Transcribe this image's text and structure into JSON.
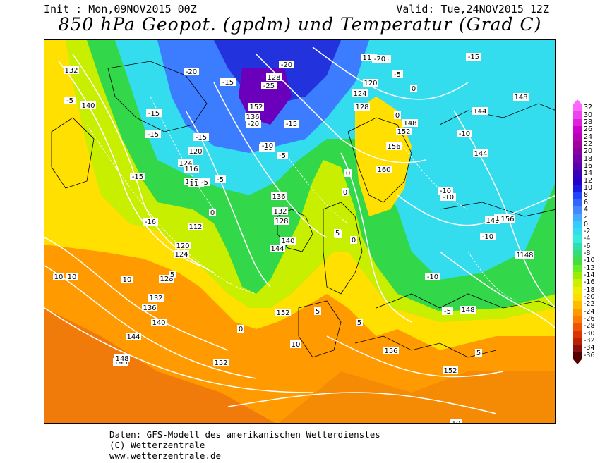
{
  "header": {
    "init": "Init : Mon,09NOV2015 00Z",
    "valid": "Valid: Tue,24NOV2015 12Z",
    "title": "850 hPa Geopot. (gpdm) und Temperatur (Grad C)"
  },
  "legend": {
    "ticks": [
      "32",
      "30",
      "28",
      "26",
      "24",
      "22",
      "20",
      "18",
      "16",
      "14",
      "12",
      "10",
      "8",
      "6",
      "4",
      "2",
      "0",
      "-2",
      "-4",
      "-6",
      "-8",
      "-10",
      "-12",
      "-14",
      "-16",
      "-18",
      "-20",
      "-22",
      "-24",
      "-26",
      "-28",
      "-30",
      "-32",
      "-34",
      "-36"
    ],
    "colors": [
      "#ff66ff",
      "#ee44ee",
      "#dd22dd",
      "#cc00cc",
      "#b800b8",
      "#a000a0",
      "#8800a0",
      "#7000aa",
      "#5a00aa",
      "#3c00b4",
      "#2800c8",
      "#1a1ae0",
      "#2244ff",
      "#3366ff",
      "#4488ff",
      "#44aaff",
      "#33ccff",
      "#33ddee",
      "#33eedd",
      "#33ddaa",
      "#33dd77",
      "#44dd44",
      "#66ee22",
      "#99ee00",
      "#ccee00",
      "#eeee00",
      "#ffdd00",
      "#ffbb00",
      "#ff9900",
      "#ff7a00",
      "#ee5500",
      "#dd3300",
      "#bb2200",
      "#881111",
      "#550000"
    ]
  },
  "map_labels": {
    "geopotential": [
      "132",
      "140",
      "148",
      "124",
      "120",
      "116",
      "112",
      "112",
      "120",
      "124",
      "128",
      "132",
      "136",
      "140",
      "144",
      "148",
      "152",
      "136",
      "132",
      "128",
      "140",
      "144",
      "152",
      "156",
      "156",
      "128",
      "136",
      "152",
      "112",
      "118",
      "120",
      "124",
      "128",
      "148",
      "152",
      "156",
      "160",
      "144",
      "148",
      "140",
      "144",
      "144",
      "148",
      "156",
      "148",
      "152",
      "156"
    ],
    "temperature": [
      "-5",
      "-15",
      "-20",
      "-15",
      "-15",
      "-15",
      "-16",
      "-10",
      "-15",
      "-10",
      "-5",
      "-5",
      "0",
      "5",
      "5",
      "0",
      "10",
      "10",
      "10",
      "-20",
      "-25",
      "-20",
      "-15",
      "-10",
      "-5",
      "-20",
      "-25",
      "-20",
      "-5",
      "0",
      "0",
      "0",
      "5",
      "0",
      "5",
      "5",
      "10",
      "-15",
      "-10",
      "-10",
      "-10",
      "-5",
      "-10",
      "0",
      "5",
      "10",
      "-10"
    ]
  },
  "footer": {
    "line1": "Daten: GFS-Modell des amerikanischen Wetterdienstes",
    "line2": "(C) Wetterzentrale",
    "line3": "www.wetterzentrale.de"
  }
}
